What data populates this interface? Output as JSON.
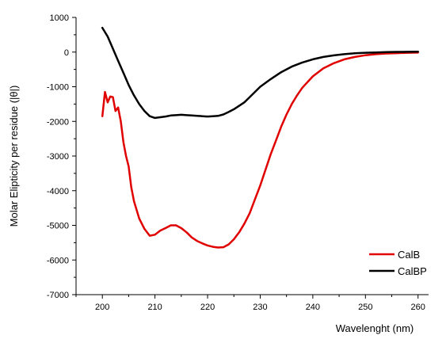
{
  "chart_data": {
    "type": "line",
    "title": "",
    "xlabel": "Wavelenght (nm)",
    "ylabel": "Molar Elipticity per residue (|θ|)",
    "xlim": [
      195,
      262
    ],
    "ylim": [
      -7000,
      1000
    ],
    "x_ticks": [
      200,
      210,
      220,
      230,
      240,
      250,
      260
    ],
    "y_ticks": [
      1000,
      0,
      -1000,
      -2000,
      -3000,
      -4000,
      -5000,
      -6000,
      -7000
    ],
    "grid": false,
    "legend_position": "bottom-right",
    "series": [
      {
        "name": "CalB",
        "color": "#e00000",
        "points": [
          [
            200,
            -1850
          ],
          [
            200.5,
            -1150
          ],
          [
            201,
            -1450
          ],
          [
            201.5,
            -1280
          ],
          [
            202,
            -1300
          ],
          [
            202.5,
            -1700
          ],
          [
            203,
            -1600
          ],
          [
            203.5,
            -2000
          ],
          [
            204,
            -2600
          ],
          [
            204.5,
            -3000
          ],
          [
            205,
            -3300
          ],
          [
            205.5,
            -3900
          ],
          [
            206,
            -4300
          ],
          [
            207,
            -4800
          ],
          [
            208,
            -5100
          ],
          [
            209,
            -5300
          ],
          [
            210,
            -5270
          ],
          [
            211,
            -5150
          ],
          [
            212,
            -5080
          ],
          [
            213,
            -5000
          ],
          [
            214,
            -5000
          ],
          [
            215,
            -5080
          ],
          [
            216,
            -5200
          ],
          [
            217,
            -5350
          ],
          [
            218,
            -5450
          ],
          [
            219,
            -5520
          ],
          [
            220,
            -5580
          ],
          [
            221,
            -5620
          ],
          [
            222,
            -5640
          ],
          [
            223,
            -5630
          ],
          [
            224,
            -5550
          ],
          [
            225,
            -5400
          ],
          [
            226,
            -5200
          ],
          [
            227,
            -4950
          ],
          [
            228,
            -4650
          ],
          [
            229,
            -4250
          ],
          [
            230,
            -3850
          ],
          [
            231,
            -3400
          ],
          [
            232,
            -2950
          ],
          [
            233,
            -2550
          ],
          [
            234,
            -2150
          ],
          [
            235,
            -1800
          ],
          [
            236,
            -1500
          ],
          [
            237,
            -1250
          ],
          [
            238,
            -1030
          ],
          [
            240,
            -700
          ],
          [
            242,
            -470
          ],
          [
            244,
            -320
          ],
          [
            246,
            -210
          ],
          [
            248,
            -140
          ],
          [
            250,
            -90
          ],
          [
            252,
            -60
          ],
          [
            254,
            -40
          ],
          [
            256,
            -30
          ],
          [
            258,
            -20
          ],
          [
            260,
            -15
          ]
        ]
      },
      {
        "name": "CalBP",
        "color": "#000000",
        "points": [
          [
            200,
            700
          ],
          [
            201,
            450
          ],
          [
            202,
            100
          ],
          [
            203,
            -250
          ],
          [
            204,
            -600
          ],
          [
            205,
            -950
          ],
          [
            206,
            -1250
          ],
          [
            207,
            -1500
          ],
          [
            208,
            -1700
          ],
          [
            209,
            -1850
          ],
          [
            210,
            -1900
          ],
          [
            211,
            -1880
          ],
          [
            212,
            -1860
          ],
          [
            213,
            -1830
          ],
          [
            214,
            -1820
          ],
          [
            215,
            -1810
          ],
          [
            216,
            -1820
          ],
          [
            217,
            -1830
          ],
          [
            218,
            -1840
          ],
          [
            219,
            -1850
          ],
          [
            220,
            -1860
          ],
          [
            221,
            -1850
          ],
          [
            222,
            -1840
          ],
          [
            223,
            -1800
          ],
          [
            224,
            -1730
          ],
          [
            225,
            -1650
          ],
          [
            226,
            -1550
          ],
          [
            227,
            -1450
          ],
          [
            228,
            -1300
          ],
          [
            229,
            -1150
          ],
          [
            230,
            -1000
          ],
          [
            232,
            -780
          ],
          [
            234,
            -580
          ],
          [
            236,
            -420
          ],
          [
            238,
            -300
          ],
          [
            240,
            -210
          ],
          [
            242,
            -140
          ],
          [
            244,
            -95
          ],
          [
            246,
            -60
          ],
          [
            248,
            -35
          ],
          [
            250,
            -20
          ],
          [
            252,
            -10
          ],
          [
            254,
            0
          ],
          [
            256,
            5
          ],
          [
            258,
            8
          ],
          [
            260,
            10
          ]
        ]
      }
    ]
  }
}
